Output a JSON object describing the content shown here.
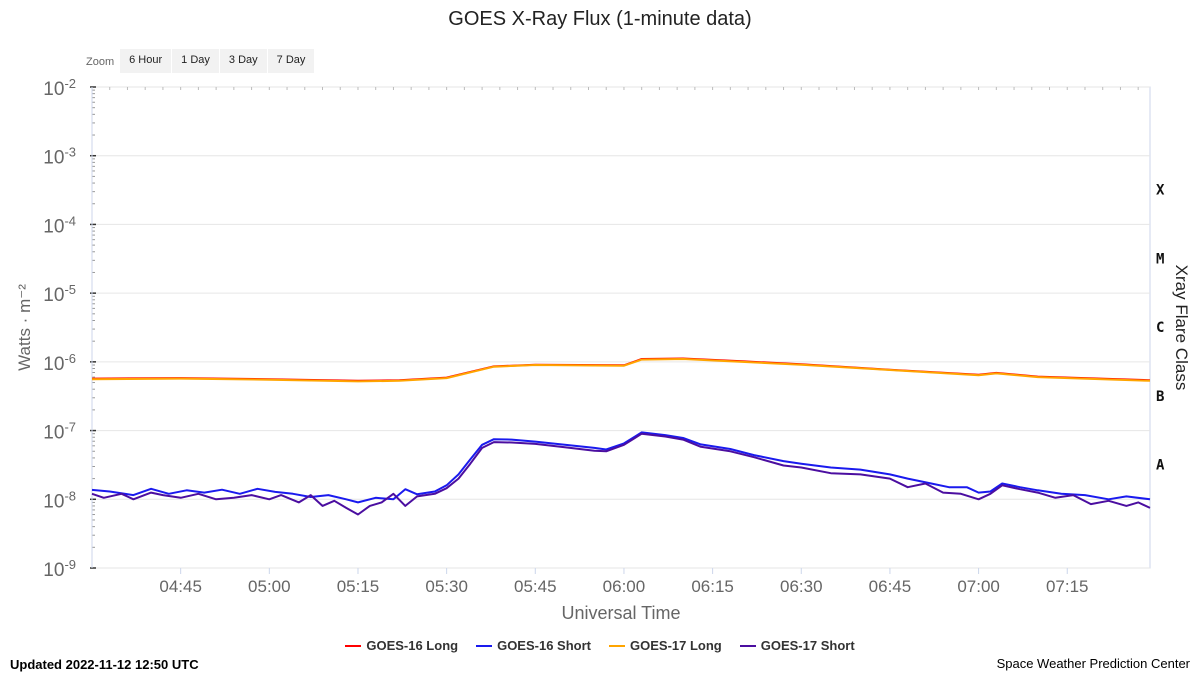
{
  "title": "GOES X-Ray Flux (1-minute data)",
  "zoom": {
    "label": "Zoom",
    "buttons": [
      "6 Hour",
      "1 Day",
      "3 Day",
      "7 Day"
    ]
  },
  "footer": {
    "updated": "Updated 2022-11-12 12:50 UTC",
    "credit": "Space Weather Prediction Center"
  },
  "chart_data": {
    "type": "line",
    "title": "GOES X-Ray Flux (1-minute data)",
    "xlabel": "Universal Time",
    "ylabel": "Watts · m⁻²",
    "y2label": "Xray Flare Class",
    "y_scale": "log",
    "ylim": [
      1e-09,
      0.01
    ],
    "xlim": [
      "04:30",
      "07:29"
    ],
    "x_tick_labels": [
      "04:45",
      "05:00",
      "05:15",
      "05:30",
      "05:45",
      "06:00",
      "06:15",
      "06:30",
      "06:45",
      "07:00",
      "07:15"
    ],
    "y_tick_labels": [
      {
        "base": "10",
        "exp": "-2",
        "value": 0.01
      },
      {
        "base": "10",
        "exp": "-3",
        "value": 0.001
      },
      {
        "base": "10",
        "exp": "-4",
        "value": 0.0001
      },
      {
        "base": "10",
        "exp": "-5",
        "value": 1e-05
      },
      {
        "base": "10",
        "exp": "-6",
        "value": 1e-06
      },
      {
        "base": "10",
        "exp": "-7",
        "value": 1e-07
      },
      {
        "base": "10",
        "exp": "-8",
        "value": 1e-08
      },
      {
        "base": "10",
        "exp": "-9",
        "value": 1e-09
      }
    ],
    "flare_classes": [
      {
        "label": "X",
        "value": 0.00032
      },
      {
        "label": "M",
        "value": 3.2e-05
      },
      {
        "label": "C",
        "value": 3.2e-06
      },
      {
        "label": "B",
        "value": 3.2e-07
      },
      {
        "label": "A",
        "value": 3.2e-08
      }
    ],
    "legend_position": "bottom",
    "grid": true,
    "series": [
      {
        "name": "GOES-16 Long",
        "color": "#ff0000",
        "points": [
          [
            "04:30",
            5.7e-07
          ],
          [
            "04:45",
            5.8e-07
          ],
          [
            "05:00",
            5.6e-07
          ],
          [
            "05:15",
            5.3e-07
          ],
          [
            "05:22",
            5.4e-07
          ],
          [
            "05:30",
            5.9e-07
          ],
          [
            "05:38",
            8.6e-07
          ],
          [
            "05:45",
            9.1e-07
          ],
          [
            "06:00",
            8.9e-07
          ],
          [
            "06:03",
            1.1e-06
          ],
          [
            "06:10",
            1.12e-06
          ],
          [
            "06:20",
            1.02e-06
          ],
          [
            "06:30",
            9.2e-07
          ],
          [
            "06:45",
            7.7e-07
          ],
          [
            "07:00",
            6.5e-07
          ],
          [
            "07:03",
            6.9e-07
          ],
          [
            "07:10",
            6.1e-07
          ],
          [
            "07:29",
            5.4e-07
          ]
        ]
      },
      {
        "name": "GOES-16 Short",
        "color": "#1a1aee",
        "points": [
          [
            "04:30",
            1.37e-08
          ],
          [
            "04:33",
            1.3e-08
          ],
          [
            "04:37",
            1.15e-08
          ],
          [
            "04:40",
            1.42e-08
          ],
          [
            "04:43",
            1.2e-08
          ],
          [
            "04:46",
            1.35e-08
          ],
          [
            "04:49",
            1.25e-08
          ],
          [
            "04:52",
            1.38e-08
          ],
          [
            "04:55",
            1.2e-08
          ],
          [
            "04:58",
            1.42e-08
          ],
          [
            "05:01",
            1.28e-08
          ],
          [
            "05:04",
            1.2e-08
          ],
          [
            "05:07",
            1.08e-08
          ],
          [
            "05:10",
            1.15e-08
          ],
          [
            "05:13",
            1e-08
          ],
          [
            "05:15",
            9e-09
          ],
          [
            "05:18",
            1.05e-08
          ],
          [
            "05:21",
            1e-08
          ],
          [
            "05:23",
            1.4e-08
          ],
          [
            "05:25",
            1.18e-08
          ],
          [
            "05:28",
            1.3e-08
          ],
          [
            "05:30",
            1.6e-08
          ],
          [
            "05:32",
            2.3e-08
          ],
          [
            "05:34",
            3.8e-08
          ],
          [
            "05:36",
            6.2e-08
          ],
          [
            "05:38",
            7.5e-08
          ],
          [
            "05:41",
            7.4e-08
          ],
          [
            "05:45",
            6.9e-08
          ],
          [
            "05:50",
            6.2e-08
          ],
          [
            "05:55",
            5.6e-08
          ],
          [
            "05:57",
            5.3e-08
          ],
          [
            "06:00",
            6.5e-08
          ],
          [
            "06:03",
            9.4e-08
          ],
          [
            "06:07",
            8.6e-08
          ],
          [
            "06:10",
            7.8e-08
          ],
          [
            "06:13",
            6.3e-08
          ],
          [
            "06:18",
            5.4e-08
          ],
          [
            "06:22",
            4.4e-08
          ],
          [
            "06:27",
            3.6e-08
          ],
          [
            "06:30",
            3.3e-08
          ],
          [
            "06:35",
            2.9e-08
          ],
          [
            "06:40",
            2.7e-08
          ],
          [
            "06:45",
            2.3e-08
          ],
          [
            "06:48",
            2e-08
          ],
          [
            "06:52",
            1.7e-08
          ],
          [
            "06:55",
            1.5e-08
          ],
          [
            "06:58",
            1.5e-08
          ],
          [
            "07:00",
            1.25e-08
          ],
          [
            "07:02",
            1.3e-08
          ],
          [
            "07:04",
            1.7e-08
          ],
          [
            "07:07",
            1.5e-08
          ],
          [
            "07:10",
            1.35e-08
          ],
          [
            "07:14",
            1.2e-08
          ],
          [
            "07:18",
            1.15e-08
          ],
          [
            "07:22",
            1e-08
          ],
          [
            "07:25",
            1.1e-08
          ],
          [
            "07:29",
            1e-08
          ]
        ]
      },
      {
        "name": "GOES-17 Long",
        "color": "#ffa500",
        "points": [
          [
            "04:30",
            5.6e-07
          ],
          [
            "04:45",
            5.7e-07
          ],
          [
            "05:00",
            5.5e-07
          ],
          [
            "05:15",
            5.2e-07
          ],
          [
            "05:22",
            5.3e-07
          ],
          [
            "05:30",
            5.8e-07
          ],
          [
            "05:38",
            8.5e-07
          ],
          [
            "05:45",
            9e-07
          ],
          [
            "06:00",
            8.8e-07
          ],
          [
            "06:03",
            1.08e-06
          ],
          [
            "06:10",
            1.1e-06
          ],
          [
            "06:20",
            1e-06
          ],
          [
            "06:30",
            9.1e-07
          ],
          [
            "06:45",
            7.6e-07
          ],
          [
            "07:00",
            6.4e-07
          ],
          [
            "07:03",
            6.8e-07
          ],
          [
            "07:10",
            6e-07
          ],
          [
            "07:29",
            5.3e-07
          ]
        ]
      },
      {
        "name": "GOES-17 Short",
        "color": "#4b0ea0",
        "points": [
          [
            "04:30",
            1.2e-08
          ],
          [
            "04:32",
            1.05e-08
          ],
          [
            "04:35",
            1.2e-08
          ],
          [
            "04:37",
            1e-08
          ],
          [
            "04:40",
            1.25e-08
          ],
          [
            "04:42",
            1.15e-08
          ],
          [
            "04:45",
            1.05e-08
          ],
          [
            "04:48",
            1.2e-08
          ],
          [
            "04:51",
            1e-08
          ],
          [
            "04:54",
            1.05e-08
          ],
          [
            "04:57",
            1.15e-08
          ],
          [
            "05:00",
            1e-08
          ],
          [
            "05:02",
            1.15e-08
          ],
          [
            "05:05",
            9e-09
          ],
          [
            "05:07",
            1.15e-08
          ],
          [
            "05:09",
            8e-09
          ],
          [
            "05:11",
            9.5e-09
          ],
          [
            "05:13",
            7.5e-09
          ],
          [
            "05:15",
            6e-09
          ],
          [
            "05:17",
            8e-09
          ],
          [
            "05:19",
            9e-09
          ],
          [
            "05:21",
            1.2e-08
          ],
          [
            "05:23",
            8e-09
          ],
          [
            "05:25",
            1.1e-08
          ],
          [
            "05:28",
            1.2e-08
          ],
          [
            "05:30",
            1.45e-08
          ],
          [
            "05:32",
            2e-08
          ],
          [
            "05:34",
            3.3e-08
          ],
          [
            "05:36",
            5.6e-08
          ],
          [
            "05:38",
            6.8e-08
          ],
          [
            "05:41",
            6.7e-08
          ],
          [
            "05:45",
            6.4e-08
          ],
          [
            "05:50",
            5.7e-08
          ],
          [
            "05:55",
            5.1e-08
          ],
          [
            "05:57",
            5e-08
          ],
          [
            "06:00",
            6.2e-08
          ],
          [
            "06:03",
            9e-08
          ],
          [
            "06:07",
            8.2e-08
          ],
          [
            "06:10",
            7.4e-08
          ],
          [
            "06:13",
            5.8e-08
          ],
          [
            "06:18",
            5e-08
          ],
          [
            "06:22",
            4.1e-08
          ],
          [
            "06:27",
            3.1e-08
          ],
          [
            "06:30",
            2.9e-08
          ],
          [
            "06:35",
            2.4e-08
          ],
          [
            "06:40",
            2.3e-08
          ],
          [
            "06:45",
            2e-08
          ],
          [
            "06:48",
            1.5e-08
          ],
          [
            "06:51",
            1.7e-08
          ],
          [
            "06:54",
            1.25e-08
          ],
          [
            "06:57",
            1.2e-08
          ],
          [
            "07:00",
            1e-08
          ],
          [
            "07:02",
            1.2e-08
          ],
          [
            "07:04",
            1.6e-08
          ],
          [
            "07:07",
            1.4e-08
          ],
          [
            "07:10",
            1.25e-08
          ],
          [
            "07:13",
            1.05e-08
          ],
          [
            "07:16",
            1.15e-08
          ],
          [
            "07:19",
            8.5e-09
          ],
          [
            "07:22",
            9.5e-09
          ],
          [
            "07:25",
            8e-09
          ],
          [
            "07:27",
            9e-09
          ],
          [
            "07:29",
            7.5e-09
          ]
        ]
      }
    ]
  }
}
